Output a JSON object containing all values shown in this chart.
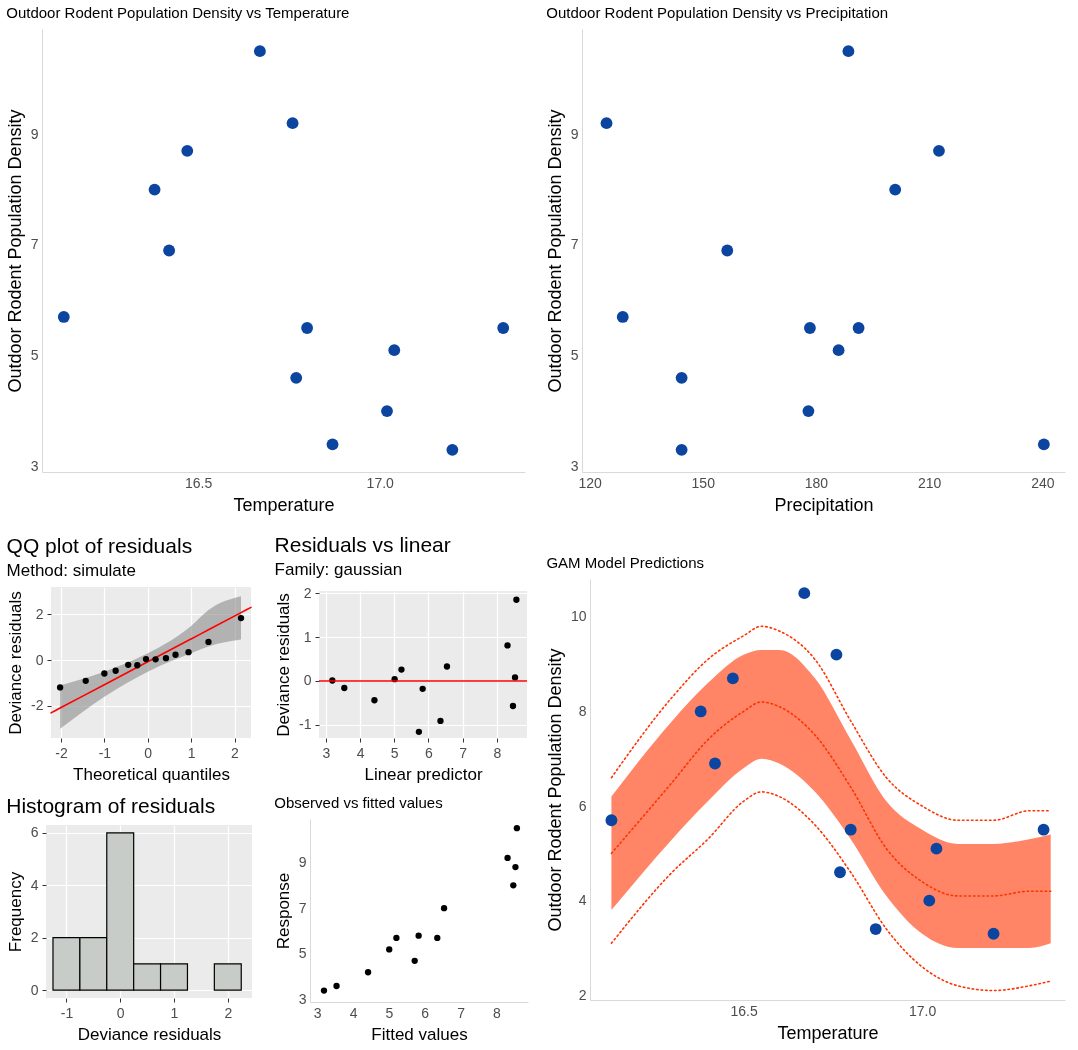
{
  "chart_data": [
    {
      "type": "scatter",
      "title": "Outdoor Rodent Population Density vs Temperature",
      "xlabel": "Temperature",
      "ylabel": "Outdoor Rodent Population Density",
      "marker": "circle",
      "xlim": [
        16.07,
        17.4
      ],
      "xticks": [
        16.5,
        {
          "value": 17,
          "label": "17.0"
        }
      ],
      "ylim": [
        2.9,
        10.9
      ],
      "yticks": [
        3,
        5,
        7,
        9
      ],
      "series": [
        {
          "color": "#0b45a0",
          "x": [
            16.13,
            16.38,
            16.42,
            16.47,
            16.67,
            16.76,
            16.77,
            16.8,
            16.87,
            17.02,
            17.04,
            17.2,
            17.34
          ],
          "values": [
            5.7,
            8.0,
            6.9,
            8.7,
            10.5,
            9.2,
            4.6,
            5.5,
            3.4,
            4.0,
            5.1,
            3.3,
            5.5
          ]
        }
      ]
    },
    {
      "type": "scatter",
      "title": "Outdoor Rodent Population Density vs Precipitation",
      "xlabel": "Precipitation",
      "ylabel": "Outdoor Rodent Population Density",
      "marker": "circle",
      "xlim": [
        118,
        246
      ],
      "xticks": [
        120,
        150,
        180,
        210,
        240
      ],
      "ylim": [
        2.9,
        10.9
      ],
      "yticks": [
        3,
        5,
        7,
        9
      ],
      "series": [
        {
          "color": "#0b45a0",
          "x": [
            124.5,
            128.8,
            144.4,
            144.4,
            156.5,
            178.4,
            178,
            186,
            188.6,
            191.3,
            201,
            212.6,
            240.4
          ],
          "values": [
            9.2,
            5.7,
            4.6,
            3.3,
            6.9,
            5.5,
            4.0,
            5.1,
            10.5,
            5.5,
            8.0,
            8.7,
            3.4
          ]
        }
      ]
    },
    {
      "type": "scatter",
      "title": "QQ plot of residuals",
      "subtitle": "Method: simulate",
      "xlabel": "Theoretical quantiles",
      "ylabel": "Deviance residuals",
      "grid": true,
      "xlim": [
        -2.23,
        2.38
      ],
      "xticks": [
        -2,
        -1,
        0,
        1,
        2
      ],
      "ylim": [
        -3.4,
        3.2
      ],
      "yticks": [
        -2,
        0,
        2
      ],
      "series": [
        {
          "type": "line",
          "color": "#ff0000",
          "x": [
            -2.23,
            -2.02,
            -1,
            0,
            1,
            1.4,
            2.15,
            2.38
          ],
          "values": [
            -2.3,
            -2.09,
            -1.07,
            -0.07,
            0.93,
            1.33,
            2.08,
            2.31
          ],
          "lower": [
            null,
            -3.0,
            -1.6,
            -0.5,
            0.3,
            0.6,
            0.9,
            null
          ],
          "upper": [
            null,
            -1.1,
            -0.5,
            0.3,
            1.5,
            2.2,
            2.8,
            null
          ]
        },
        {
          "type": "scatter",
          "marker": "circle",
          "color": "#000000",
          "x": [
            -2.02,
            -1.43,
            -1.0,
            -0.74,
            -0.45,
            -0.24,
            -0.04,
            0.18,
            0.42,
            0.64,
            0.94,
            1.4,
            2.15
          ],
          "values": [
            -1.19,
            -0.9,
            -0.58,
            -0.46,
            -0.2,
            -0.22,
            0.05,
            0.04,
            0.09,
            0.24,
            0.35,
            0.8,
            1.84
          ]
        }
      ]
    },
    {
      "type": "scatter",
      "title": "Residuals vs linear",
      "subtitle": "Family: gaussian",
      "xlabel": "Linear predictor",
      "ylabel": "Deviance residuals",
      "grid": true,
      "marker": "circle",
      "xlim": [
        2.8,
        8.88
      ],
      "xticks": [
        3,
        4,
        5,
        6,
        7,
        8
      ],
      "ylim": [
        -1.3,
        2.05
      ],
      "yticks": [
        -1,
        0,
        1,
        2
      ],
      "ref_lines": [
        {
          "axis": "y",
          "value": 0,
          "color": "#ff0000"
        }
      ],
      "series": [
        {
          "color": "#000000",
          "x": [
            3.19,
            3.54,
            4.42,
            5.01,
            5.21,
            5.72,
            5.83,
            6.35,
            6.54,
            8.31,
            8.47,
            8.53,
            8.57
          ],
          "values": [
            0.01,
            -0.16,
            -0.44,
            0.04,
            0.26,
            -1.16,
            -0.18,
            -0.91,
            0.33,
            0.81,
            -0.57,
            0.08,
            1.85
          ]
        }
      ]
    },
    {
      "type": "histogram",
      "title": "Histogram of residuals",
      "xlabel": "Deviance residuals",
      "ylabel": "Frequency",
      "grid": true,
      "color": "#c8ccc8",
      "xlim": [
        -1.38,
        2.45
      ],
      "xticks": [
        -1,
        0,
        1,
        2
      ],
      "ylim": [
        -0.3,
        6.3
      ],
      "yticks": [
        0,
        2,
        4,
        6
      ],
      "bins": [
        -1.25,
        -0.75,
        -0.25,
        0.25,
        0.75,
        1.25,
        1.75,
        2.25
      ],
      "values": [
        2,
        2,
        6,
        1,
        1,
        0,
        1
      ]
    },
    {
      "type": "scatter",
      "title": "Observed vs fitted values",
      "xlabel": "Fitted values",
      "ylabel": "Response",
      "marker": "circle",
      "xlim": [
        2.8,
        8.88
      ],
      "xticks": [
        3,
        4,
        5,
        6,
        7,
        8
      ],
      "ylim": [
        2.9,
        10.9
      ],
      "yticks": [
        3,
        5,
        7,
        9
      ],
      "series": [
        {
          "color": "#000000",
          "x": [
            3.19,
            3.54,
            4.42,
            5.01,
            5.21,
            5.72,
            5.83,
            6.35,
            6.54,
            8.31,
            8.47,
            8.53,
            8.57
          ],
          "values": [
            3.4,
            3.6,
            4.2,
            5.2,
            5.7,
            4.7,
            5.8,
            5.7,
            7.0,
            9.2,
            8.0,
            8.8,
            10.5
          ]
        }
      ]
    },
    {
      "type": "scatter",
      "title": "GAM Model Predictions",
      "xlabel": "Temperature",
      "ylabel": "Outdoor Rodent Population Density",
      "line_style": "dotted",
      "xlim": [
        16.07,
        17.4
      ],
      "xticks": [
        16.5,
        {
          "value": 17,
          "label": "17.0"
        }
      ],
      "ylim": [
        1.9,
        10.8
      ],
      "yticks": [
        2,
        4,
        6,
        8,
        10
      ],
      "series": [
        {
          "type": "line",
          "color": "#ff3300",
          "x": [
            16.13,
            16.3,
            16.4,
            16.5,
            16.55,
            16.6,
            16.7,
            16.8,
            16.9,
            17.0,
            17.1,
            17.2,
            17.3,
            17.36
          ],
          "values": [
            5.0,
            6.5,
            7.4,
            8.0,
            8.2,
            8.1,
            7.5,
            6.4,
            5.1,
            4.4,
            4.1,
            4.1,
            4.2,
            4.2
          ],
          "lower": [
            3.8,
            5.3,
            6.1,
            6.8,
            7.0,
            6.9,
            6.3,
            5.3,
            4.1,
            3.3,
            3.0,
            3.0,
            3.0,
            3.1
          ],
          "upper": [
            6.2,
            7.8,
            8.6,
            9.2,
            9.3,
            9.3,
            8.7,
            7.4,
            6.1,
            5.5,
            5.2,
            5.2,
            5.3,
            5.4
          ]
        },
        {
          "type": "line",
          "color": "#ff3300",
          "x": [
            16.13,
            16.3,
            16.4,
            16.5,
            16.55,
            16.6,
            16.7,
            16.8,
            16.9,
            17.0,
            17.1,
            17.2,
            17.3,
            17.36
          ],
          "values": [
            6.6,
            8.3,
            9.1,
            9.6,
            9.8,
            9.7,
            9.1,
            7.8,
            6.6,
            6.0,
            5.7,
            5.7,
            5.9,
            5.9
          ]
        },
        {
          "type": "line",
          "color": "#ff3300",
          "x": [
            16.13,
            16.3,
            16.4,
            16.5,
            16.55,
            16.6,
            16.7,
            16.8,
            16.9,
            17.0,
            17.1,
            17.2,
            17.3,
            17.36
          ],
          "values": [
            3.1,
            4.6,
            5.3,
            6.1,
            6.3,
            6.2,
            5.6,
            4.6,
            3.4,
            2.6,
            2.2,
            2.1,
            2.2,
            2.3
          ]
        },
        {
          "type": "scatter",
          "marker": "circle",
          "color": "#0b45a0",
          "x": [
            16.13,
            16.38,
            16.42,
            16.47,
            16.67,
            16.76,
            16.77,
            16.8,
            16.87,
            17.02,
            17.04,
            17.2,
            17.34
          ],
          "values": [
            5.7,
            8.0,
            6.9,
            8.7,
            10.5,
            9.2,
            4.6,
            5.5,
            3.4,
            4.0,
            5.1,
            3.3,
            5.5
          ]
        }
      ]
    }
  ]
}
